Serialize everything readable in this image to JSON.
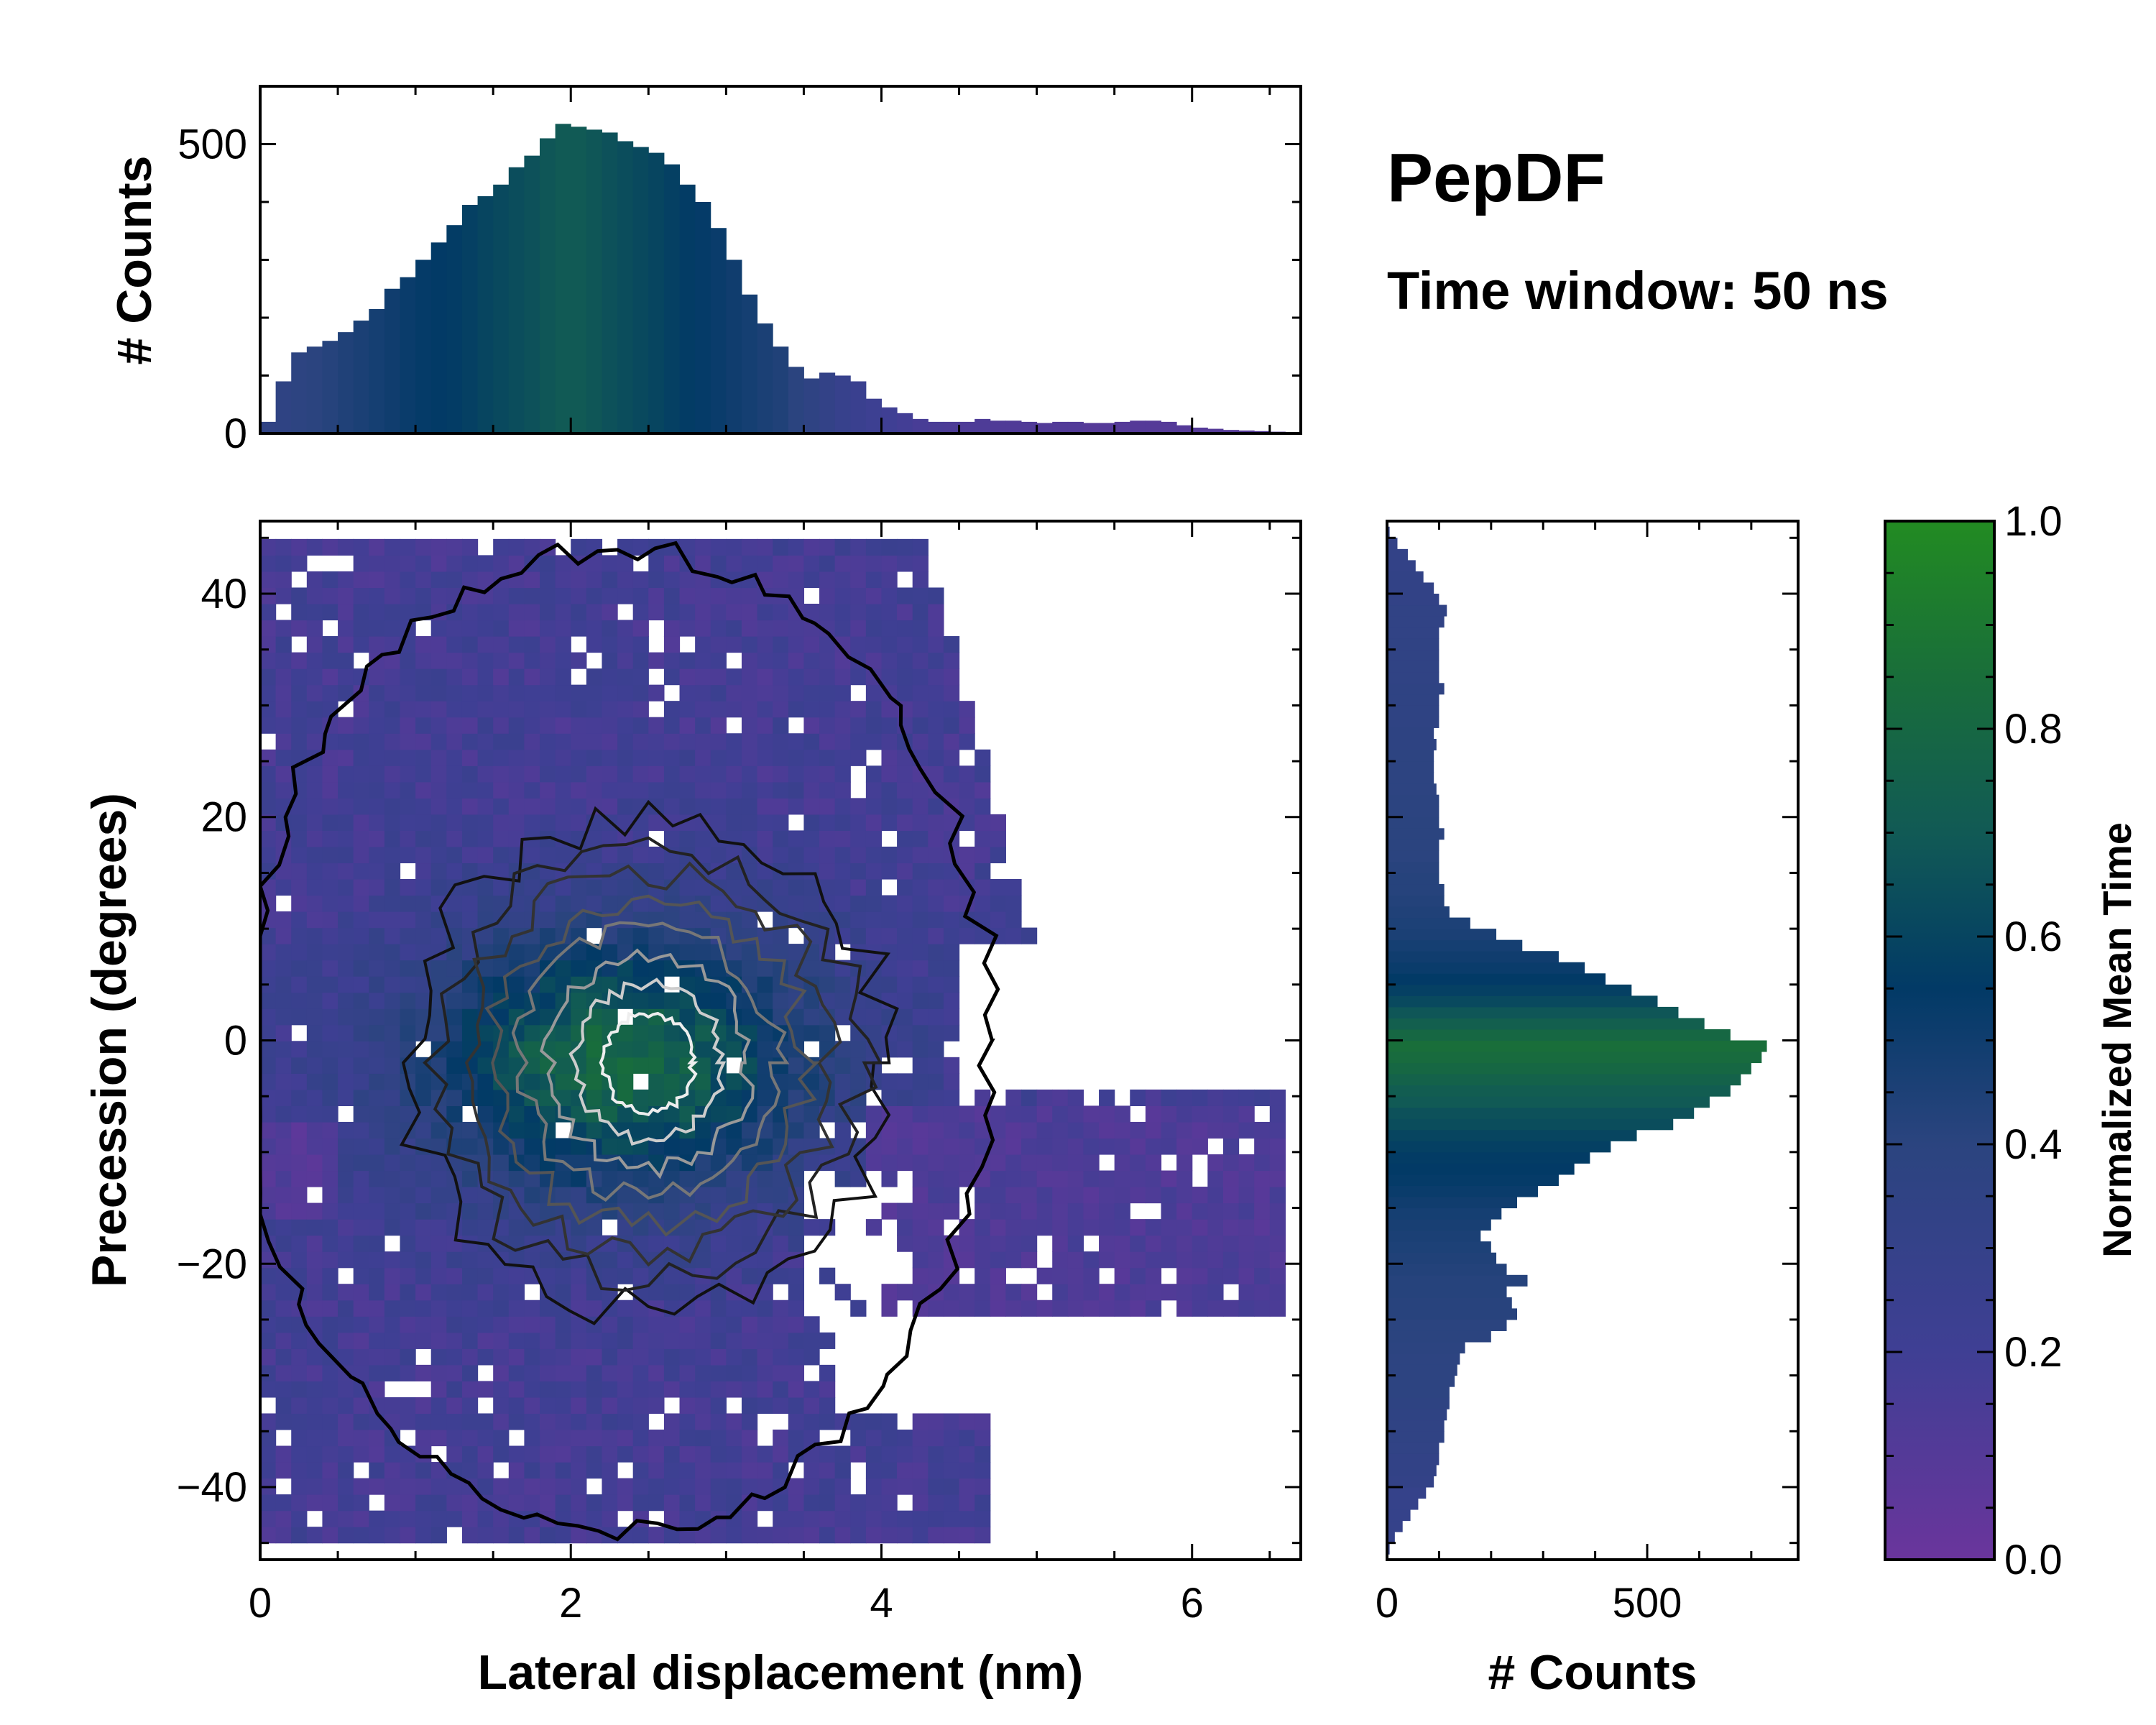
{
  "figure_title": "PepDF",
  "figure_subtitle": "Time window: 50 ns",
  "colormap": {
    "stops": [
      [
        0.0,
        "#6a359c"
      ],
      [
        0.2,
        "#3f3f94"
      ],
      [
        0.4,
        "#2b447f"
      ],
      [
        0.55,
        "#023a66"
      ],
      [
        0.7,
        "#115a55"
      ],
      [
        0.85,
        "#196e3a"
      ],
      [
        1.0,
        "#228b22"
      ]
    ]
  },
  "chart_data": [
    {
      "name": "main-2d-histogram",
      "type": "heatmap",
      "title": "",
      "xlabel": "Lateral displacement (nm)",
      "ylabel": "Precession (degrees)",
      "xlim": [
        0,
        6.7
      ],
      "ylim": [
        -46.5,
        46.5
      ],
      "xticks": [
        0,
        2,
        4,
        6
      ],
      "yticks": [
        -40,
        -20,
        0,
        20,
        40
      ],
      "xtick_labels": [
        "0",
        "2",
        "4",
        "6"
      ],
      "ytick_labels": [
        "−40",
        "−20",
        "0",
        "20",
        "40"
      ],
      "color_meaning": "Normalized Mean Time",
      "density_peak": {
        "x": 2.6,
        "y": -2
      },
      "contour_levels": 6
    },
    {
      "name": "top-marginal-histogram",
      "type": "bar",
      "ylabel": "# Counts",
      "xlim": [
        0,
        6.7
      ],
      "ylim": [
        0,
        600
      ],
      "yticks": [
        0,
        500
      ],
      "ytick_labels": [
        "0",
        "500"
      ],
      "bin_width": 0.1,
      "x": [
        0.05,
        0.15,
        0.25,
        0.35,
        0.45,
        0.55,
        0.65,
        0.75,
        0.85,
        0.95,
        1.05,
        1.15,
        1.25,
        1.35,
        1.45,
        1.55,
        1.65,
        1.75,
        1.85,
        1.95,
        2.05,
        2.15,
        2.25,
        2.35,
        2.45,
        2.55,
        2.65,
        2.75,
        2.85,
        2.95,
        3.05,
        3.15,
        3.25,
        3.35,
        3.45,
        3.55,
        3.65,
        3.75,
        3.85,
        3.95,
        4.05,
        4.15,
        4.25,
        4.35,
        4.45,
        4.55,
        4.65,
        4.75,
        4.85,
        4.95,
        5.05,
        5.15,
        5.25,
        5.35,
        5.45,
        5.55,
        5.65,
        5.75,
        5.85,
        5.95,
        6.05,
        6.15,
        6.25,
        6.35,
        6.45,
        6.55
      ],
      "values": [
        20,
        90,
        140,
        150,
        160,
        175,
        195,
        215,
        250,
        270,
        300,
        330,
        360,
        395,
        410,
        430,
        460,
        480,
        510,
        535,
        530,
        525,
        520,
        505,
        495,
        485,
        465,
        430,
        400,
        355,
        300,
        240,
        190,
        150,
        115,
        95,
        105,
        100,
        90,
        60,
        45,
        35,
        25,
        20,
        20,
        20,
        25,
        22,
        22,
        20,
        18,
        20,
        20,
        18,
        18,
        20,
        22,
        22,
        20,
        14,
        10,
        8,
        6,
        5,
        4,
        3
      ],
      "mean_time": [
        0.35,
        0.36,
        0.38,
        0.4,
        0.42,
        0.44,
        0.46,
        0.48,
        0.5,
        0.52,
        0.54,
        0.55,
        0.56,
        0.58,
        0.6,
        0.62,
        0.64,
        0.66,
        0.68,
        0.7,
        0.7,
        0.68,
        0.66,
        0.64,
        0.62,
        0.6,
        0.58,
        0.56,
        0.54,
        0.52,
        0.5,
        0.48,
        0.46,
        0.44,
        0.4,
        0.36,
        0.32,
        0.28,
        0.25,
        0.22,
        0.2,
        0.18,
        0.16,
        0.15,
        0.14,
        0.13,
        0.13,
        0.12,
        0.12,
        0.12,
        0.11,
        0.11,
        0.11,
        0.1,
        0.1,
        0.1,
        0.1,
        0.1,
        0.1,
        0.1,
        0.1,
        0.1,
        0.1,
        0.1,
        0.1,
        0.1
      ]
    },
    {
      "name": "right-marginal-histogram",
      "type": "bar",
      "orientation": "horizontal",
      "xlabel": "# Counts",
      "xlim": [
        0,
        790
      ],
      "xticks": [
        0,
        500
      ],
      "xtick_labels": [
        "0",
        "500"
      ],
      "ylim": [
        -46.5,
        46.5
      ],
      "bin_width": 1,
      "y": [
        -45.5,
        -44.5,
        -43.5,
        -42.5,
        -41.5,
        -40.5,
        -39.5,
        -38.5,
        -37.5,
        -36.5,
        -35.5,
        -34.5,
        -33.5,
        -32.5,
        -31.5,
        -30.5,
        -29.5,
        -28.5,
        -27.5,
        -26.5,
        -25.5,
        -24.5,
        -23.5,
        -22.5,
        -21.5,
        -20.5,
        -19.5,
        -18.5,
        -17.5,
        -16.5,
        -15.5,
        -14.5,
        -13.5,
        -12.5,
        -11.5,
        -10.5,
        -9.5,
        -8.5,
        -7.5,
        -6.5,
        -5.5,
        -4.5,
        -3.5,
        -2.5,
        -1.5,
        -0.5,
        0.5,
        1.5,
        2.5,
        3.5,
        4.5,
        5.5,
        6.5,
        7.5,
        8.5,
        9.5,
        10.5,
        11.5,
        12.5,
        13.5,
        14.5,
        15.5,
        16.5,
        17.5,
        18.5,
        19.5,
        20.5,
        21.5,
        22.5,
        23.5,
        24.5,
        25.5,
        26.5,
        27.5,
        28.5,
        29.5,
        30.5,
        31.5,
        32.5,
        33.5,
        34.5,
        35.5,
        36.5,
        37.5,
        38.5,
        39.5,
        40.5,
        41.5,
        42.5,
        43.5,
        44.5,
        45.5
      ],
      "values": [
        5,
        15,
        30,
        45,
        60,
        75,
        90,
        95,
        100,
        100,
        110,
        110,
        115,
        120,
        120,
        130,
        135,
        140,
        150,
        200,
        230,
        250,
        240,
        230,
        270,
        230,
        210,
        200,
        180,
        200,
        220,
        250,
        290,
        330,
        360,
        390,
        430,
        480,
        550,
        590,
        620,
        660,
        680,
        700,
        720,
        730,
        660,
        610,
        560,
        520,
        470,
        420,
        380,
        330,
        260,
        210,
        160,
        120,
        110,
        110,
        100,
        100,
        100,
        100,
        110,
        100,
        100,
        100,
        95,
        90,
        90,
        90,
        95,
        90,
        100,
        100,
        100,
        110,
        100,
        100,
        100,
        100,
        100,
        110,
        115,
        100,
        90,
        70,
        55,
        40,
        20,
        5
      ],
      "mean_time": [
        0.3,
        0.3,
        0.3,
        0.3,
        0.3,
        0.3,
        0.32,
        0.33,
        0.33,
        0.34,
        0.35,
        0.35,
        0.36,
        0.37,
        0.38,
        0.38,
        0.38,
        0.38,
        0.39,
        0.4,
        0.4,
        0.41,
        0.41,
        0.42,
        0.42,
        0.43,
        0.44,
        0.45,
        0.46,
        0.47,
        0.48,
        0.5,
        0.52,
        0.54,
        0.55,
        0.56,
        0.58,
        0.6,
        0.64,
        0.66,
        0.7,
        0.72,
        0.76,
        0.8,
        0.83,
        0.85,
        0.8,
        0.74,
        0.68,
        0.62,
        0.58,
        0.55,
        0.52,
        0.5,
        0.48,
        0.46,
        0.45,
        0.44,
        0.43,
        0.42,
        0.42,
        0.41,
        0.4,
        0.4,
        0.4,
        0.4,
        0.39,
        0.39,
        0.38,
        0.38,
        0.38,
        0.38,
        0.37,
        0.37,
        0.36,
        0.36,
        0.36,
        0.36,
        0.35,
        0.35,
        0.35,
        0.35,
        0.34,
        0.34,
        0.34,
        0.33,
        0.33,
        0.33,
        0.32,
        0.32,
        0.32,
        0.32
      ]
    },
    {
      "name": "colorbar",
      "type": "colorbar",
      "label": "Normalized Mean Time",
      "range": [
        0.0,
        1.0
      ],
      "ticks": [
        0.0,
        0.2,
        0.4,
        0.6,
        0.8,
        1.0
      ],
      "tick_labels": [
        "0.0",
        "0.2",
        "0.4",
        "0.6",
        "0.8",
        "1.0"
      ]
    }
  ]
}
